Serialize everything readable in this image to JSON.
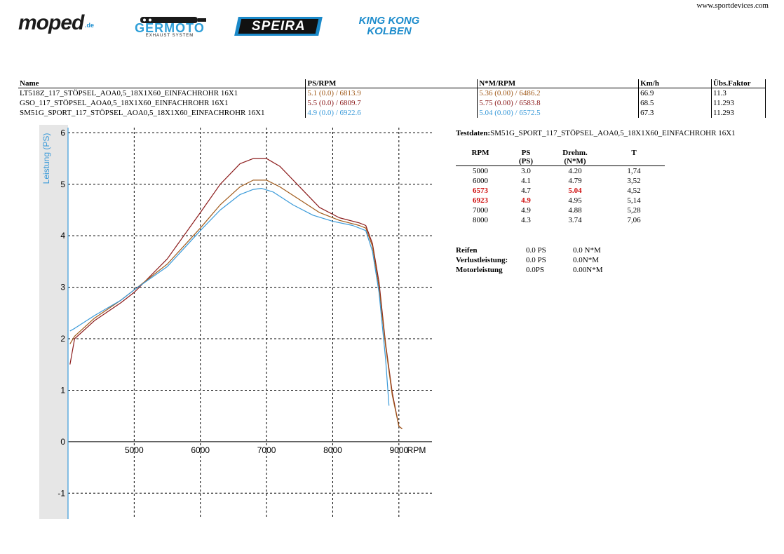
{
  "website": "www.sportdevices.com",
  "logos": {
    "moped": {
      "text": "moped",
      "tld": ".de"
    },
    "germoto": {
      "text": "GERMOTO",
      "sub": "EXHAUST SYSTEM"
    },
    "speira": {
      "text": "SPEIRA"
    },
    "kingkong": {
      "line1": "KING KONG",
      "line2": "KOLBEN"
    }
  },
  "runs_table": {
    "headers": {
      "name": "Name",
      "ps_rpm": "PS/RPM",
      "nm_rpm": "N*M/RPM",
      "kmh": "Km/h",
      "faktor": "Übs.Faktor"
    },
    "rows": [
      {
        "name": "LT518Z_117_STÖPSEL_AOA0,5_18X1X60_EINFACHROHR 16X1",
        "ps_rpm": "5.1 (0.0) / 6813.9",
        "nm_rpm": "5.36 (0.00) / 6486.2",
        "kmh": "66.9",
        "faktor": "11.3",
        "color": "#a05a1a"
      },
      {
        "name": "GSO_117_STÖPSEL_AOA0,5_18X1X60_EINFACHROHR 16X1",
        "ps_rpm": "5.5 (0.0) / 6809.7",
        "nm_rpm": "5.75 (0.00) / 6583.8",
        "kmh": "68.5",
        "faktor": "11.293",
        "color": "#8b1a1a"
      },
      {
        "name": "SM51G_SPORT_117_STÖPSEL_AOA0,5_18X1X60_EINFACHROHR 16X1",
        "ps_rpm": "4.9 (0.0) / 6922.6",
        "nm_rpm": "5.04 (0.00) / 6572.5",
        "kmh": "67.3",
        "faktor": "11.293",
        "color": "#3a9ad9"
      }
    ]
  },
  "testdaten": {
    "label": "Testdaten:",
    "name": "SM51G_SPORT_117_STÖPSEL_AOA0,5_18X1X60_EINFACHROHR 16X1",
    "headers": {
      "rpm": "RPM",
      "ps": "PS",
      "ps_unit": "(PS)",
      "drehm": "Drehm.",
      "drehm_unit": "(N*M)",
      "t": "T"
    },
    "rows": [
      {
        "rpm": "5000",
        "ps": "3.0",
        "drehm": "4.20",
        "t": "1,74",
        "hl_rpm": false,
        "hl_ps": false,
        "hl_drehm": false
      },
      {
        "rpm": "6000",
        "ps": "4.1",
        "drehm": "4.79",
        "t": "3,52",
        "hl_rpm": false,
        "hl_ps": false,
        "hl_drehm": false
      },
      {
        "rpm": "6573",
        "ps": "4.7",
        "drehm": "5.04",
        "t": "4,52",
        "hl_rpm": true,
        "hl_ps": false,
        "hl_drehm": true
      },
      {
        "rpm": "6923",
        "ps": "4.9",
        "drehm": "4.95",
        "t": "5,14",
        "hl_rpm": true,
        "hl_ps": true,
        "hl_drehm": false
      },
      {
        "rpm": "7000",
        "ps": "4.9",
        "drehm": "4.88",
        "t": "5,28",
        "hl_rpm": false,
        "hl_ps": false,
        "hl_drehm": false
      },
      {
        "rpm": "8000",
        "ps": "4.3",
        "drehm": "3.74",
        "t": "7,06",
        "hl_rpm": false,
        "hl_ps": false,
        "hl_drehm": false
      }
    ],
    "loss": [
      {
        "label": "Reifen",
        "ps": "0.0 PS",
        "nm": "0.0 N*M"
      },
      {
        "label": "Verlustleistung:",
        "ps": "0.0 PS",
        "nm": "0.0N*M"
      },
      {
        "label": "Motorleistung",
        "ps": "0.0PS",
        "nm": "0.00N*M"
      }
    ]
  },
  "colors": {
    "highlight": "#d01010",
    "axis": "#3a9ad9"
  },
  "chart_data": {
    "type": "line",
    "xlabel": "RPM",
    "ylabel": "Leistung (PS)",
    "xlim": [
      4000,
      9500
    ],
    "ylim": [
      -1.5,
      6.1
    ],
    "x_ticks": [
      5000,
      6000,
      7000,
      8000,
      9000
    ],
    "y_ticks": [
      -1,
      0,
      1,
      2,
      3,
      4,
      5,
      6
    ],
    "grid": true,
    "legend": "none",
    "series": [
      {
        "name": "GSO_117_STÖPSEL_AOA0,5_18X1X60_EINFACHROHR 16X1",
        "color": "#8b1a1a",
        "x": [
          4030,
          4100,
          4400,
          4800,
          5000,
          5500,
          6000,
          6300,
          6600,
          6800,
          7000,
          7200,
          7500,
          7800,
          8100,
          8400,
          8500,
          8600,
          8700,
          8800,
          8900,
          9000,
          9050
        ],
        "y": [
          1.5,
          2.0,
          2.35,
          2.7,
          2.9,
          3.55,
          4.45,
          5.0,
          5.4,
          5.5,
          5.5,
          5.35,
          4.95,
          4.55,
          4.35,
          4.25,
          4.2,
          3.85,
          3.1,
          1.9,
          0.95,
          0.3,
          0.25
        ]
      },
      {
        "name": "LT518Z_117_STÖPSEL_AOA0,5_18X1X60_EINFACHROHR 16X1",
        "color": "#a05a1a",
        "x": [
          4030,
          4100,
          4400,
          4800,
          5000,
          5500,
          6000,
          6300,
          6600,
          6800,
          7000,
          7200,
          7500,
          7800,
          8100,
          8400,
          8500,
          8600,
          8700,
          8800,
          8900,
          9000,
          9050
        ],
        "y": [
          1.9,
          2.05,
          2.4,
          2.75,
          2.95,
          3.45,
          4.15,
          4.6,
          4.95,
          5.08,
          5.08,
          4.95,
          4.7,
          4.45,
          4.3,
          4.2,
          4.15,
          3.8,
          3.0,
          1.85,
          0.9,
          0.3,
          0.25
        ]
      },
      {
        "name": "SM51G_SPORT_117_STÖPSEL_AOA0,5_18X1X60_EINFACHROHR 16X1",
        "color": "#3a9ad9",
        "x": [
          4030,
          4100,
          4400,
          4800,
          5000,
          5500,
          6000,
          6300,
          6600,
          6800,
          6923,
          7100,
          7400,
          7700,
          8000,
          8300,
          8500,
          8600,
          8700,
          8800,
          8850
        ],
        "y": [
          2.15,
          2.2,
          2.45,
          2.75,
          2.95,
          3.4,
          4.1,
          4.5,
          4.8,
          4.9,
          4.92,
          4.85,
          4.6,
          4.4,
          4.28,
          4.2,
          4.1,
          3.7,
          2.9,
          1.6,
          0.7
        ]
      }
    ]
  }
}
